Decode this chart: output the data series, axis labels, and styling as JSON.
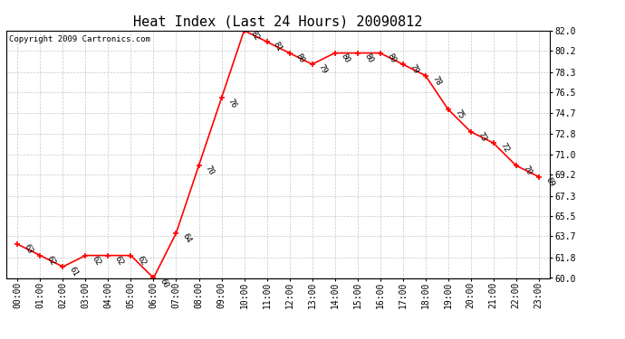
{
  "title": "Heat Index (Last 24 Hours) 20090812",
  "copyright": "Copyright 2009 Cartronics.com",
  "hours": [
    "00:00",
    "01:00",
    "02:00",
    "03:00",
    "04:00",
    "05:00",
    "06:00",
    "07:00",
    "08:00",
    "09:00",
    "10:00",
    "11:00",
    "12:00",
    "13:00",
    "14:00",
    "15:00",
    "16:00",
    "17:00",
    "18:00",
    "19:00",
    "20:00",
    "21:00",
    "22:00",
    "23:00"
  ],
  "values": [
    63,
    62,
    61,
    62,
    62,
    62,
    60,
    64,
    70,
    76,
    82,
    81,
    80,
    79,
    80,
    80,
    80,
    79,
    78,
    75,
    73,
    72,
    70,
    69
  ],
  "ylim": [
    60.0,
    82.0
  ],
  "yticks": [
    60.0,
    61.8,
    63.7,
    65.5,
    67.3,
    69.2,
    71.0,
    72.8,
    74.7,
    76.5,
    78.3,
    80.2,
    82.0
  ],
  "line_color": "red",
  "marker": "+",
  "marker_color": "red",
  "bg_color": "white",
  "plot_bg_color": "white",
  "grid_color": "#c8c8c8",
  "title_fontsize": 11,
  "annot_fontsize": 6.5,
  "tick_fontsize": 7,
  "copyright_fontsize": 6.5
}
